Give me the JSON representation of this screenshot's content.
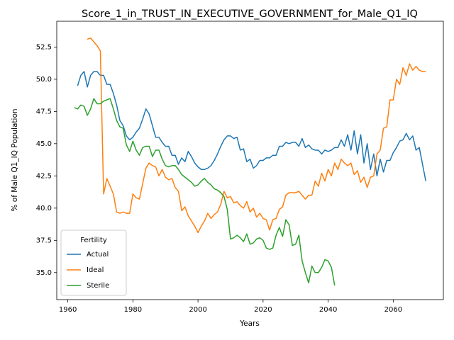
{
  "chart_data": {
    "type": "line",
    "title": "Score_1_in_TRUST_IN_EXECUTIVE_GOVERNMENT_for_Male_Q1_IQ",
    "x_label": "Years",
    "y_label": "% of Male Q1_IQ Population",
    "legend_title": "Fertility",
    "legend": "lower left",
    "grid": false,
    "xlim": [
      1956.6,
      2075.4
    ],
    "ylim": [
      32.9,
      54.5
    ],
    "xticks": [
      1960,
      1980,
      2000,
      2020,
      2040,
      2060
    ],
    "yticks": [
      {
        "value": 35,
        "label": "35.0"
      },
      37.5,
      {
        "value": 40,
        "label": "40.0"
      },
      42.5,
      {
        "value": 45,
        "label": "45.0"
      },
      47.5,
      {
        "value": 50,
        "label": "50.0"
      },
      52.5
    ],
    "x": [
      1962,
      1963,
      1964,
      1965,
      1966,
      1967,
      1968,
      1969,
      1970,
      1971,
      1972,
      1973,
      1974,
      1975,
      1976,
      1977,
      1978,
      1979,
      1980,
      1981,
      1982,
      1983,
      1984,
      1985,
      1986,
      1987,
      1988,
      1989,
      1990,
      1991,
      1992,
      1993,
      1994,
      1995,
      1996,
      1997,
      1998,
      1999,
      2000,
      2001,
      2002,
      2003,
      2004,
      2005,
      2006,
      2007,
      2008,
      2009,
      2010,
      2011,
      2012,
      2013,
      2014,
      2015,
      2016,
      2017,
      2018,
      2019,
      2020,
      2021,
      2022,
      2023,
      2024,
      2025,
      2026,
      2027,
      2028,
      2029,
      2030,
      2031,
      2032,
      2033,
      2034,
      2035,
      2036,
      2037,
      2038,
      2039,
      2040,
      2041,
      2042,
      2043,
      2044,
      2045,
      2046,
      2047,
      2048,
      2049,
      2050,
      2051,
      2052,
      2053,
      2054,
      2055,
      2056,
      2057,
      2058,
      2059,
      2060,
      2061,
      2062,
      2063,
      2064,
      2065,
      2066,
      2067,
      2068,
      2069,
      2070
    ],
    "series": [
      {
        "name": "Actual",
        "color": "#1f77b4",
        "values": [
          null,
          49.5,
          50.3,
          50.6,
          49.4,
          50.3,
          50.6,
          50.6,
          50.3,
          50.3,
          49.6,
          49.6,
          48.9,
          48.0,
          46.8,
          46.4,
          45.6,
          45.3,
          45.5,
          45.9,
          46.2,
          46.9,
          47.7,
          47.3,
          46.4,
          45.5,
          45.5,
          45.1,
          44.8,
          44.8,
          44.1,
          44.1,
          43.4,
          43.9,
          43.6,
          44.4,
          44.0,
          43.5,
          43.2,
          43.0,
          43.0,
          43.1,
          43.3,
          43.7,
          44.2,
          44.8,
          45.3,
          45.6,
          45.6,
          45.4,
          45.5,
          44.5,
          44.6,
          43.6,
          43.8,
          43.1,
          43.3,
          43.7,
          43.7,
          43.9,
          43.9,
          44.1,
          44.1,
          44.8,
          44.8,
          45.1,
          45.0,
          45.1,
          45.1,
          44.8,
          45.4,
          44.7,
          44.9,
          44.6,
          44.5,
          44.5,
          44.2,
          44.5,
          44.4,
          44.5,
          44.7,
          44.7,
          45.3,
          44.8,
          45.7,
          44.5,
          46.0,
          44.2,
          45.7,
          43.5,
          45.0,
          43.0,
          44.2,
          42.5,
          43.8,
          42.8,
          43.7,
          43.7,
          44.3,
          44.7,
          45.2,
          45.3,
          45.8,
          45.3,
          45.6,
          44.5,
          44.7,
          43.4,
          42.1
        ]
      },
      {
        "name": "Ideal",
        "color": "#ff7f0e",
        "values": [
          null,
          null,
          null,
          null,
          53.1,
          53.2,
          52.9,
          52.6,
          52.2,
          41.1,
          42.3,
          41.7,
          41.1,
          39.7,
          39.6,
          39.7,
          39.6,
          39.6,
          41.1,
          40.8,
          40.7,
          41.9,
          43.1,
          43.5,
          43.3,
          43.2,
          42.5,
          43.0,
          42.4,
          42.2,
          42.3,
          41.6,
          41.3,
          39.8,
          40.1,
          39.4,
          39.0,
          38.6,
          38.1,
          38.6,
          39.0,
          39.6,
          39.2,
          39.5,
          39.7,
          40.3,
          41.3,
          40.8,
          40.9,
          40.4,
          40.5,
          40.2,
          40.0,
          40.5,
          39.7,
          40.0,
          39.3,
          39.6,
          39.2,
          39.1,
          38.3,
          39.1,
          39.2,
          39.9,
          40.1,
          41.0,
          41.2,
          41.2,
          41.2,
          41.3,
          41.0,
          40.7,
          41.0,
          41.0,
          42.1,
          41.7,
          42.7,
          42.1,
          43.0,
          42.5,
          43.5,
          43.0,
          43.8,
          43.5,
          43.3,
          43.5,
          42.6,
          42.9,
          42.0,
          42.4,
          41.6,
          42.4,
          42.5,
          44.2,
          44.5,
          46.2,
          46.3,
          48.4,
          48.4,
          50.0,
          49.6,
          50.9,
          50.3,
          51.2,
          50.7,
          51.0,
          50.7,
          50.6,
          50.6
        ]
      },
      {
        "name": "Sterile",
        "color": "#2ca02c",
        "values": [
          47.8,
          47.7,
          48.0,
          47.9,
          47.2,
          47.7,
          48.5,
          48.1,
          48.1,
          48.3,
          48.4,
          48.5,
          47.7,
          46.8,
          46.3,
          46.2,
          44.9,
          44.4,
          45.2,
          44.5,
          44.1,
          44.7,
          44.8,
          44.8,
          44.0,
          44.5,
          44.5,
          43.8,
          43.3,
          43.2,
          43.3,
          43.3,
          43.0,
          42.6,
          42.4,
          42.2,
          42.0,
          41.7,
          41.8,
          42.1,
          42.3,
          42.0,
          41.8,
          41.5,
          41.4,
          41.2,
          40.9,
          39.9,
          37.6,
          37.7,
          37.9,
          37.7,
          37.4,
          38.0,
          37.2,
          37.3,
          37.6,
          37.7,
          37.5,
          36.9,
          36.8,
          36.9,
          37.9,
          38.5,
          37.8,
          39.1,
          38.7,
          37.1,
          37.2,
          37.9,
          35.9,
          35.0,
          34.2,
          35.5,
          35.0,
          35.0,
          35.4,
          36.0,
          35.9,
          35.4,
          34.0,
          null,
          null,
          null,
          null,
          null,
          null,
          null,
          null,
          null,
          null,
          null,
          null,
          null,
          null,
          null,
          null,
          null,
          null,
          null,
          null,
          null,
          null,
          null,
          null,
          null,
          null,
          null,
          null
        ]
      }
    ]
  }
}
